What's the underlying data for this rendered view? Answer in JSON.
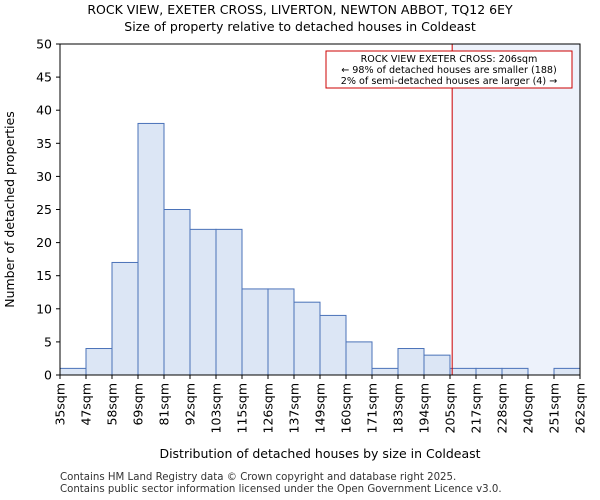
{
  "header": {
    "title": "ROCK VIEW, EXETER CROSS, LIVERTON, NEWTON ABBOT, TQ12 6EY",
    "subtitle": "Size of property relative to detached houses in Coldeast"
  },
  "footer": {
    "line1": "Contains HM Land Registry data © Crown copyright and database right 2025.",
    "line2": "Contains public sector information licensed under the Open Government Licence v3.0."
  },
  "chart_data": {
    "type": "bar",
    "title": "Size of property relative to detached houses in Coldeast",
    "xlabel": "Distribution of detached houses by size in Coldeast",
    "ylabel": "Number of detached properties",
    "ylim": [
      0,
      50
    ],
    "yticks": [
      0,
      5,
      10,
      15,
      20,
      25,
      30,
      35,
      40,
      45,
      50
    ],
    "bin_edges": [
      "35sqm",
      "47sqm",
      "58sqm",
      "69sqm",
      "81sqm",
      "92sqm",
      "103sqm",
      "115sqm",
      "126sqm",
      "137sqm",
      "149sqm",
      "160sqm",
      "171sqm",
      "183sqm",
      "194sqm",
      "205sqm",
      "217sqm",
      "228sqm",
      "240sqm",
      "251sqm",
      "262sqm"
    ],
    "values": [
      1,
      4,
      17,
      38,
      25,
      22,
      22,
      13,
      13,
      11,
      9,
      5,
      1,
      4,
      3,
      1,
      1,
      1,
      0,
      1
    ],
    "grid": false,
    "bar_color": "#dce6f5",
    "bar_edge_color": "#4a72b8",
    "marker": {
      "value_sqm": 206,
      "color": "#cc0000",
      "shade_color": "#edf2fb"
    },
    "annotation": {
      "lines": [
        "ROCK VIEW EXETER CROSS: 206sqm",
        "← 98% of detached houses are smaller (188)",
        "2% of semi-detached houses are larger (4) →"
      ],
      "border_color": "#cc0000",
      "placement": "top-right"
    }
  }
}
